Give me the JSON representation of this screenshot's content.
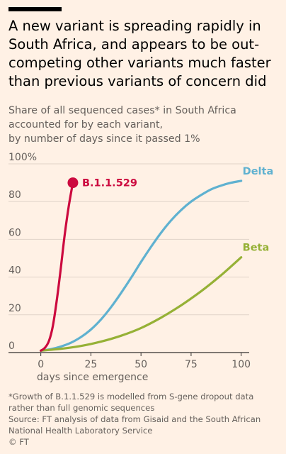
{
  "title": "A new variant is spreading rapidly in South Africa, and appears to be out-competing other variants much faster than previous variants of concern did",
  "subtitle_lines": [
    "Share of all sequenced cases* in South Africa",
    "accounted for by each variant,",
    "by number of days since it passed 1%"
  ],
  "footnote_lines": [
    "*Growth of B.1.1.529 is modelled from S-gene dropout data",
    "rather than full genomic sequences",
    "Source: FT analysis of data from Gisaid and the South African",
    "National Health Laboratory Service",
    "© FT"
  ],
  "chart_data": {
    "type": "line",
    "xlabel": "days since emergence",
    "ylabel": "",
    "xlim": [
      -2,
      104
    ],
    "ylim": [
      0,
      100
    ],
    "x_ticks": [
      {
        "value": 0,
        "label": "0"
      },
      {
        "value": 25,
        "label": "25"
      },
      {
        "value": 50,
        "label": "50"
      },
      {
        "value": 75,
        "label": "75"
      },
      {
        "value": 100,
        "label": "100"
      }
    ],
    "y_ticks": [
      {
        "value": 0,
        "label": "0"
      },
      {
        "value": 20,
        "label": "20"
      },
      {
        "value": 40,
        "label": "40"
      },
      {
        "value": 60,
        "label": "60"
      },
      {
        "value": 80,
        "label": "80"
      },
      {
        "value": 100,
        "label": "100%"
      }
    ],
    "grid": true,
    "series": [
      {
        "name": "Delta",
        "color": "#5fb1d0",
        "x": [
          0,
          5,
          10,
          15,
          20,
          25,
          30,
          35,
          40,
          45,
          50,
          55,
          60,
          65,
          70,
          75,
          80,
          85,
          90,
          95,
          100
        ],
        "y": [
          1,
          1.8,
          3.2,
          5.2,
          8.2,
          12.2,
          17.5,
          24,
          31.5,
          39.5,
          48,
          56,
          63.5,
          70,
          75.5,
          80,
          83.5,
          86.5,
          88.5,
          90,
          91
        ]
      },
      {
        "name": "Beta",
        "color": "#96b136",
        "x": [
          0,
          10,
          20,
          30,
          40,
          50,
          60,
          70,
          80,
          90,
          100
        ],
        "y": [
          1,
          2,
          3.5,
          5.8,
          8.9,
          13,
          18.5,
          25,
          32.5,
          41,
          50.5
        ]
      },
      {
        "name": "B.1.1.529",
        "color": "#cc0a3f",
        "x": [
          0,
          2,
          4,
          6,
          8,
          10,
          12,
          14,
          16
        ],
        "y": [
          1,
          2.5,
          6,
          14,
          28,
          45,
          63,
          78,
          90
        ],
        "endpoint_marker": true
      }
    ]
  }
}
